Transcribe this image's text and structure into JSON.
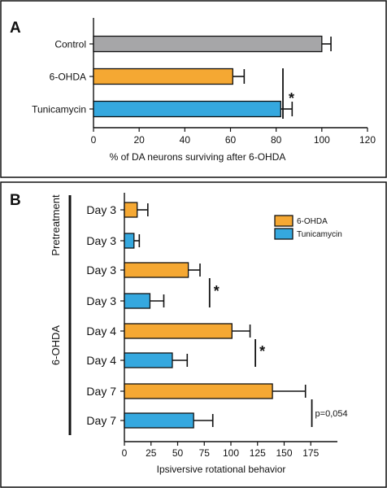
{
  "chart_data": [
    {
      "type": "bar",
      "panel_label": "A",
      "orientation": "horizontal",
      "categories": [
        "Control",
        "6-OHDA",
        "Tunicamycin"
      ],
      "values": [
        100,
        61,
        82
      ],
      "errors": [
        4,
        5,
        5
      ],
      "colors": [
        "#a6a6a8",
        "#f5a833",
        "#35a8df"
      ],
      "xlabel": "% of DA neurons surviving after 6-OHDA",
      "xlim": [
        0,
        120
      ],
      "xticks": [
        0,
        20,
        40,
        60,
        80,
        100,
        120
      ],
      "annotations": [
        {
          "text": "*",
          "between": [
            "6-OHDA",
            "Tunicamycin"
          ]
        }
      ]
    },
    {
      "type": "bar",
      "panel_label": "B",
      "orientation": "horizontal",
      "categories": [
        "Day 3",
        "Day 3",
        "Day 3",
        "Day 3",
        "Day 4",
        "Day 4",
        "Day 7",
        "Day 7"
      ],
      "series_index": [
        0,
        1,
        0,
        1,
        0,
        1,
        0,
        1
      ],
      "values": [
        12,
        9,
        60,
        24,
        101,
        45,
        139,
        65
      ],
      "errors": [
        10,
        5,
        11,
        13,
        17,
        14,
        31,
        18
      ],
      "groups": [
        {
          "label": "Pretreatment",
          "start": 0,
          "end": 1
        },
        {
          "label": "6-OHDA",
          "start": 2,
          "end": 7
        }
      ],
      "series": [
        {
          "name": "6-OHDA",
          "color": "#f5a833"
        },
        {
          "name": "Tunicamycin",
          "color": "#35a8df"
        }
      ],
      "xlabel": "Ipsiversive rotational behavior",
      "xlim": [
        0,
        200
      ],
      "xticks": [
        0,
        25,
        50,
        75,
        100,
        125,
        150,
        175
      ],
      "annotations": [
        {
          "text": "*",
          "rows": [
            2,
            3
          ],
          "at": 80
        },
        {
          "text": "*",
          "rows": [
            4,
            5
          ],
          "at": 123
        },
        {
          "text": "p=0,054",
          "rows": [
            6,
            7
          ],
          "at": 176
        }
      ]
    }
  ]
}
